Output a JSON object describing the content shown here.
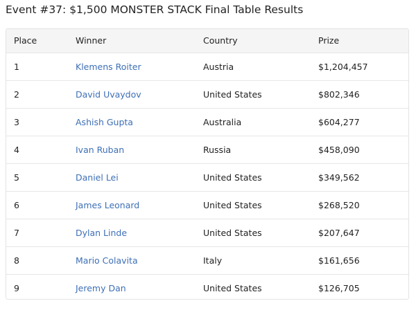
{
  "page": {
    "title": "Event #37: $1,500 MONSTER STACK Final Table Results"
  },
  "table": {
    "headers": {
      "place": "Place",
      "winner": "Winner",
      "country": "Country",
      "prize": "Prize"
    },
    "rows": [
      {
        "place": "1",
        "winner": "Klemens Roiter",
        "country": "Austria",
        "prize": "$1,204,457"
      },
      {
        "place": "2",
        "winner": "David Uvaydov",
        "country": "United States",
        "prize": "$802,346"
      },
      {
        "place": "3",
        "winner": "Ashish Gupta",
        "country": "Australia",
        "prize": "$604,277"
      },
      {
        "place": "4",
        "winner": "Ivan Ruban",
        "country": "Russia",
        "prize": "$458,090"
      },
      {
        "place": "5",
        "winner": "Daniel Lei",
        "country": "United States",
        "prize": "$349,562"
      },
      {
        "place": "6",
        "winner": "James Leonard",
        "country": "United States",
        "prize": "$268,520"
      },
      {
        "place": "7",
        "winner": "Dylan Linde",
        "country": "United States",
        "prize": "$207,647"
      },
      {
        "place": "8",
        "winner": "Mario Colavita",
        "country": "Italy",
        "prize": "$161,656"
      },
      {
        "place": "9",
        "winner": "Jeremy Dan",
        "country": "United States",
        "prize": "$126,705"
      }
    ]
  },
  "colors": {
    "link": "#3d6fb6",
    "header_bg": "#f5f5f5",
    "border": "#e3e3e3"
  }
}
